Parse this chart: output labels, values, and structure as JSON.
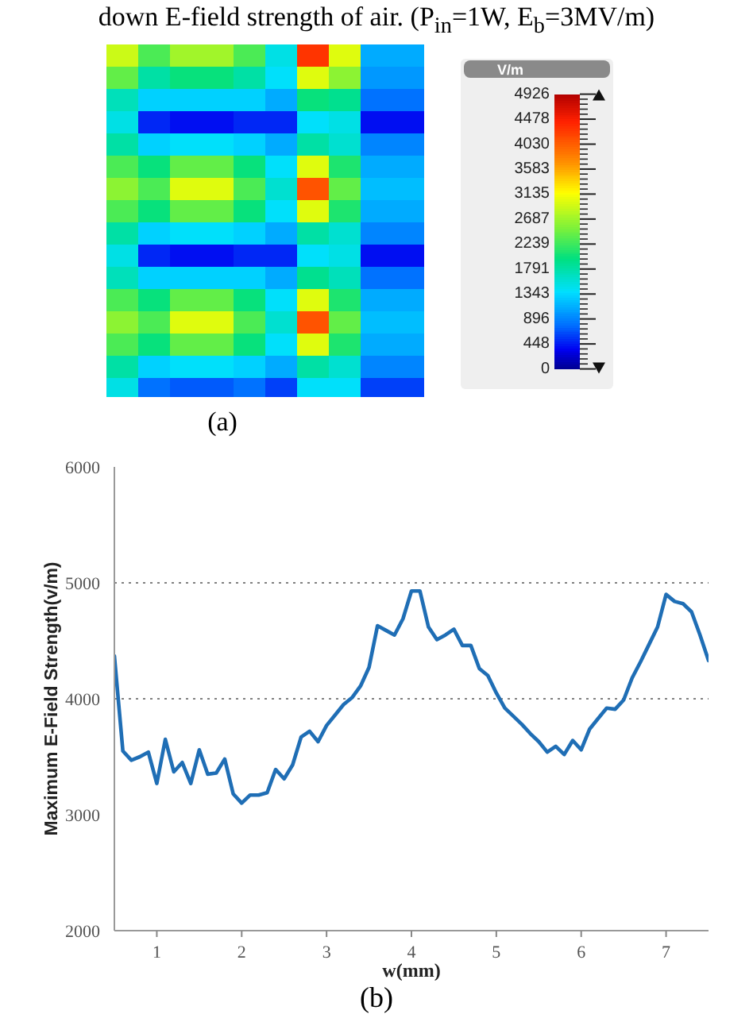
{
  "chart_data": [
    {
      "type": "heatmap",
      "title": "down E-field strength of air. (P$_{in}$=1W, E$_{b}$=3MV/m)",
      "clabel": "V/m",
      "clim": [
        0,
        4926
      ],
      "cticks": [
        0,
        448,
        896,
        1343,
        1791,
        2239,
        2687,
        3135,
        3583,
        4030,
        4478,
        4926
      ],
      "categories": [
        null,
        null,
        null,
        null,
        null,
        null,
        null,
        null,
        null,
        null
      ],
      "y_categories": [
        null,
        null,
        null,
        null,
        null,
        null,
        null,
        null,
        null,
        null,
        null,
        null,
        null,
        null,
        null,
        null
      ],
      "cells": [
        [
          2900,
          2300,
          2700,
          2700,
          2300,
          1500,
          4300,
          3000,
          1100,
          1100
        ],
        [
          2400,
          1800,
          2000,
          2000,
          1800,
          1400,
          3000,
          2600,
          1000,
          1000
        ],
        [
          1700,
          1300,
          1300,
          1300,
          1300,
          1100,
          2000,
          1900,
          800,
          800
        ],
        [
          1500,
          500,
          400,
          400,
          500,
          500,
          1400,
          1500,
          400,
          400
        ],
        [
          1800,
          1300,
          1400,
          1400,
          1300,
          1100,
          1800,
          1600,
          900,
          900
        ],
        [
          2300,
          2000,
          2400,
          2400,
          2000,
          1400,
          3000,
          2100,
          1100,
          1100
        ],
        [
          2600,
          2300,
          3000,
          3000,
          2300,
          1600,
          4100,
          2400,
          1200,
          1200
        ],
        [
          2300,
          2000,
          2400,
          2400,
          2000,
          1400,
          3000,
          2100,
          1100,
          1100
        ],
        [
          1800,
          1300,
          1400,
          1400,
          1300,
          1100,
          1800,
          1600,
          900,
          900
        ],
        [
          1500,
          500,
          400,
          400,
          500,
          500,
          1400,
          1500,
          400,
          400
        ],
        [
          1700,
          1300,
          1300,
          1300,
          1300,
          1100,
          1900,
          1700,
          800,
          800
        ],
        [
          2300,
          2000,
          2400,
          2400,
          2000,
          1400,
          3000,
          2100,
          1100,
          1100
        ],
        [
          2600,
          2300,
          3000,
          3000,
          2300,
          1600,
          4100,
          2400,
          1200,
          1200
        ],
        [
          2300,
          2000,
          2400,
          2400,
          2000,
          1400,
          3000,
          2100,
          1100,
          1100
        ],
        [
          1800,
          1300,
          1400,
          1400,
          1300,
          1100,
          1800,
          1600,
          900,
          900
        ],
        [
          1500,
          800,
          700,
          700,
          800,
          600,
          1400,
          1400,
          600,
          600
        ]
      ],
      "annotations": [
        "(a)"
      ]
    },
    {
      "type": "line",
      "xlabel": "w(mm)",
      "ylabel": "Maximum E-Field Strength(v/m)",
      "x": [
        0.5,
        0.6,
        0.7,
        0.8,
        0.9,
        1.0,
        1.1,
        1.2,
        1.3,
        1.4,
        1.5,
        1.6,
        1.7,
        1.8,
        1.9,
        2.0,
        2.1,
        2.2,
        2.3,
        2.4,
        2.5,
        2.6,
        2.7,
        2.8,
        2.9,
        3.0,
        3.1,
        3.2,
        3.3,
        3.4,
        3.5,
        3.6,
        3.7,
        3.8,
        3.9,
        4.0,
        4.1,
        4.2,
        4.3,
        4.4,
        4.5,
        4.6,
        4.7,
        4.8,
        4.9,
        5.0,
        5.1,
        5.2,
        5.3,
        5.4,
        5.5,
        5.6,
        5.7,
        5.8,
        5.9,
        6.0,
        6.1,
        6.2,
        6.3,
        6.4,
        6.5,
        6.6,
        6.7,
        6.8,
        6.9,
        7.0,
        7.1,
        7.2,
        7.3,
        7.4,
        7.5
      ],
      "series": [
        {
          "color": "#1f6eb5",
          "values": [
            4370,
            3550,
            3470,
            3500,
            3540,
            3270,
            3650,
            3370,
            3450,
            3270,
            3560,
            3350,
            3360,
            3480,
            3180,
            3100,
            3170,
            3170,
            3190,
            3390,
            3310,
            3430,
            3670,
            3720,
            3630,
            3770,
            3860,
            3950,
            4010,
            4110,
            4270,
            4630,
            4590,
            4550,
            4690,
            4930,
            4930,
            4620,
            4510,
            4550,
            4600,
            4460,
            4460,
            4260,
            4200,
            4050,
            3920,
            3850,
            3780,
            3700,
            3630,
            3540,
            3590,
            3520,
            3640,
            3560,
            3740,
            3830,
            3920,
            3910,
            3990,
            4180,
            4320,
            4470,
            4620,
            4900,
            4840,
            4820,
            4750,
            4550,
            4330
          ]
        }
      ],
      "xlim": [
        0.5,
        7.5
      ],
      "xticks": [
        1,
        2,
        3,
        4,
        5,
        6,
        7
      ],
      "ylim": [
        2000,
        6000
      ],
      "yticks": [
        2000,
        3000,
        4000,
        5000,
        6000
      ],
      "ref_lines": [
        {
          "axis": "y",
          "value": 4000,
          "color": "#808080",
          "line_style": "dotted"
        },
        {
          "axis": "y",
          "value": 5000,
          "color": "#808080",
          "line_style": "dotted"
        }
      ],
      "marker": "none",
      "line_style": "solid",
      "annotations": [
        "(b)"
      ]
    }
  ]
}
